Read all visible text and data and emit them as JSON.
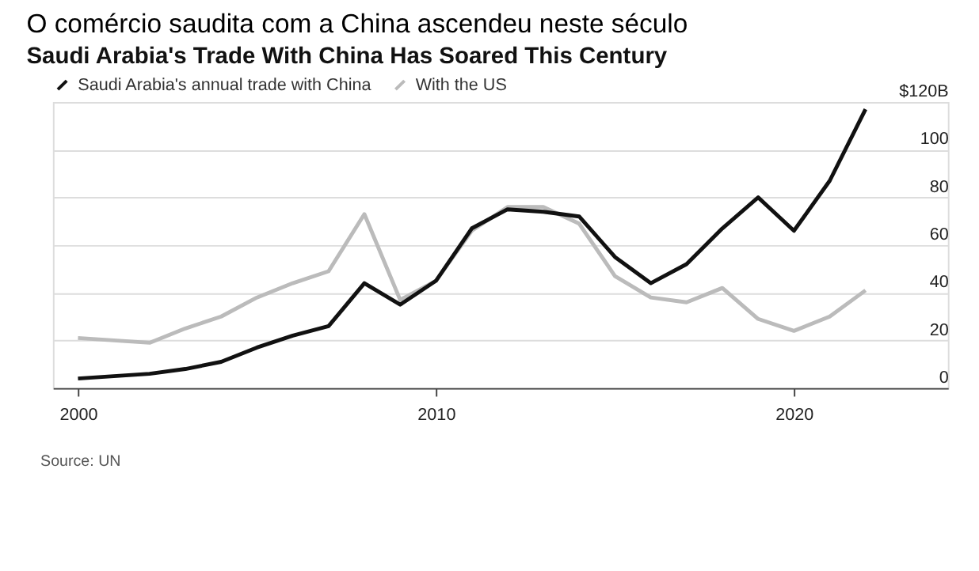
{
  "chart_data": {
    "type": "line",
    "title": "O comércio saudita com a China ascendeu neste século",
    "subtitle": "Saudi Arabia's Trade With China Has Soared This Century",
    "x": [
      2000,
      2001,
      2002,
      2003,
      2004,
      2005,
      2006,
      2007,
      2008,
      2009,
      2010,
      2011,
      2012,
      2013,
      2014,
      2015,
      2016,
      2017,
      2018,
      2019,
      2020,
      2021,
      2022
    ],
    "series": [
      {
        "name": "Saudi Arabia's annual trade with China",
        "color": "#111111",
        "values": [
          4,
          5,
          6,
          8,
          11,
          17,
          22,
          26,
          44,
          35,
          45,
          67,
          75,
          74,
          72,
          55,
          44,
          52,
          67,
          80,
          66,
          87,
          117
        ]
      },
      {
        "name": "With the US",
        "color": "#bbbbbb",
        "values": [
          21,
          20,
          19,
          25,
          30,
          38,
          44,
          49,
          73,
          37,
          45,
          66,
          76,
          76,
          69,
          47,
          38,
          36,
          42,
          29,
          24,
          30,
          41
        ]
      }
    ],
    "xlim": [
      1999.3,
      2024.3
    ],
    "xticks": [
      2000,
      2010,
      2020
    ],
    "ylim": [
      0,
      120
    ],
    "yticks": [
      0,
      20,
      40,
      60,
      80,
      100,
      {
        "value": 120,
        "label": "$120B"
      }
    ],
    "grid": "y",
    "legend": "top left",
    "line_style": "solid",
    "annotations": [
      "Source: UN"
    ]
  }
}
